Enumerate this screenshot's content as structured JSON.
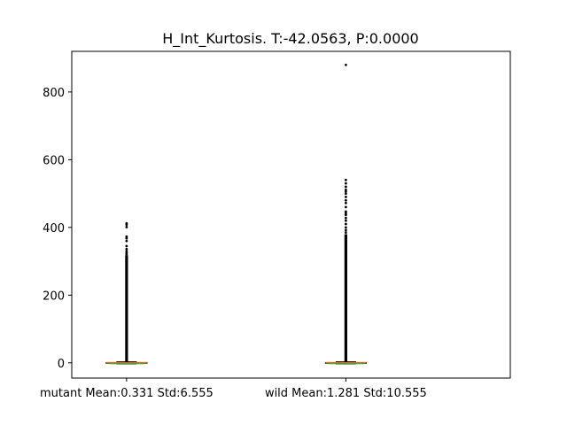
{
  "chart_data": {
    "type": "boxplot",
    "title": "H_Int_Kurtosis. T:-42.0563, P:0.0000",
    "xlabel": "",
    "ylabel": "",
    "ylim": [
      -45,
      920
    ],
    "yticks": [
      0,
      200,
      400,
      600,
      800
    ],
    "categories": [
      "mutant Mean:0.331 Std:6.555",
      "wild Mean:1.281 Std:10.555"
    ],
    "series": [
      {
        "name": "mutant",
        "median": 0,
        "q1": -1,
        "q3": 1,
        "whisker_low": -3,
        "whisker_high": 3,
        "outlier_dense_top": 318,
        "outliers_sparse": [
          321,
          325,
          330,
          336,
          345,
          360,
          368,
          373,
          401,
          408,
          412
        ]
      },
      {
        "name": "wild",
        "median": 0,
        "q1": -1,
        "q3": 1,
        "whisker_low": -3,
        "whisker_high": 3,
        "outlier_dense_top": 380,
        "outliers_sparse": [
          385,
          392,
          400,
          410,
          420,
          428,
          437,
          442,
          447,
          460,
          472,
          480,
          490,
          500,
          506,
          511,
          520,
          530,
          540,
          880
        ]
      }
    ],
    "colors": {
      "axis": "#000000",
      "box": "#000000",
      "median": "#ff7f0e",
      "mean": "#2ca02c",
      "outlier": "#000000"
    }
  }
}
